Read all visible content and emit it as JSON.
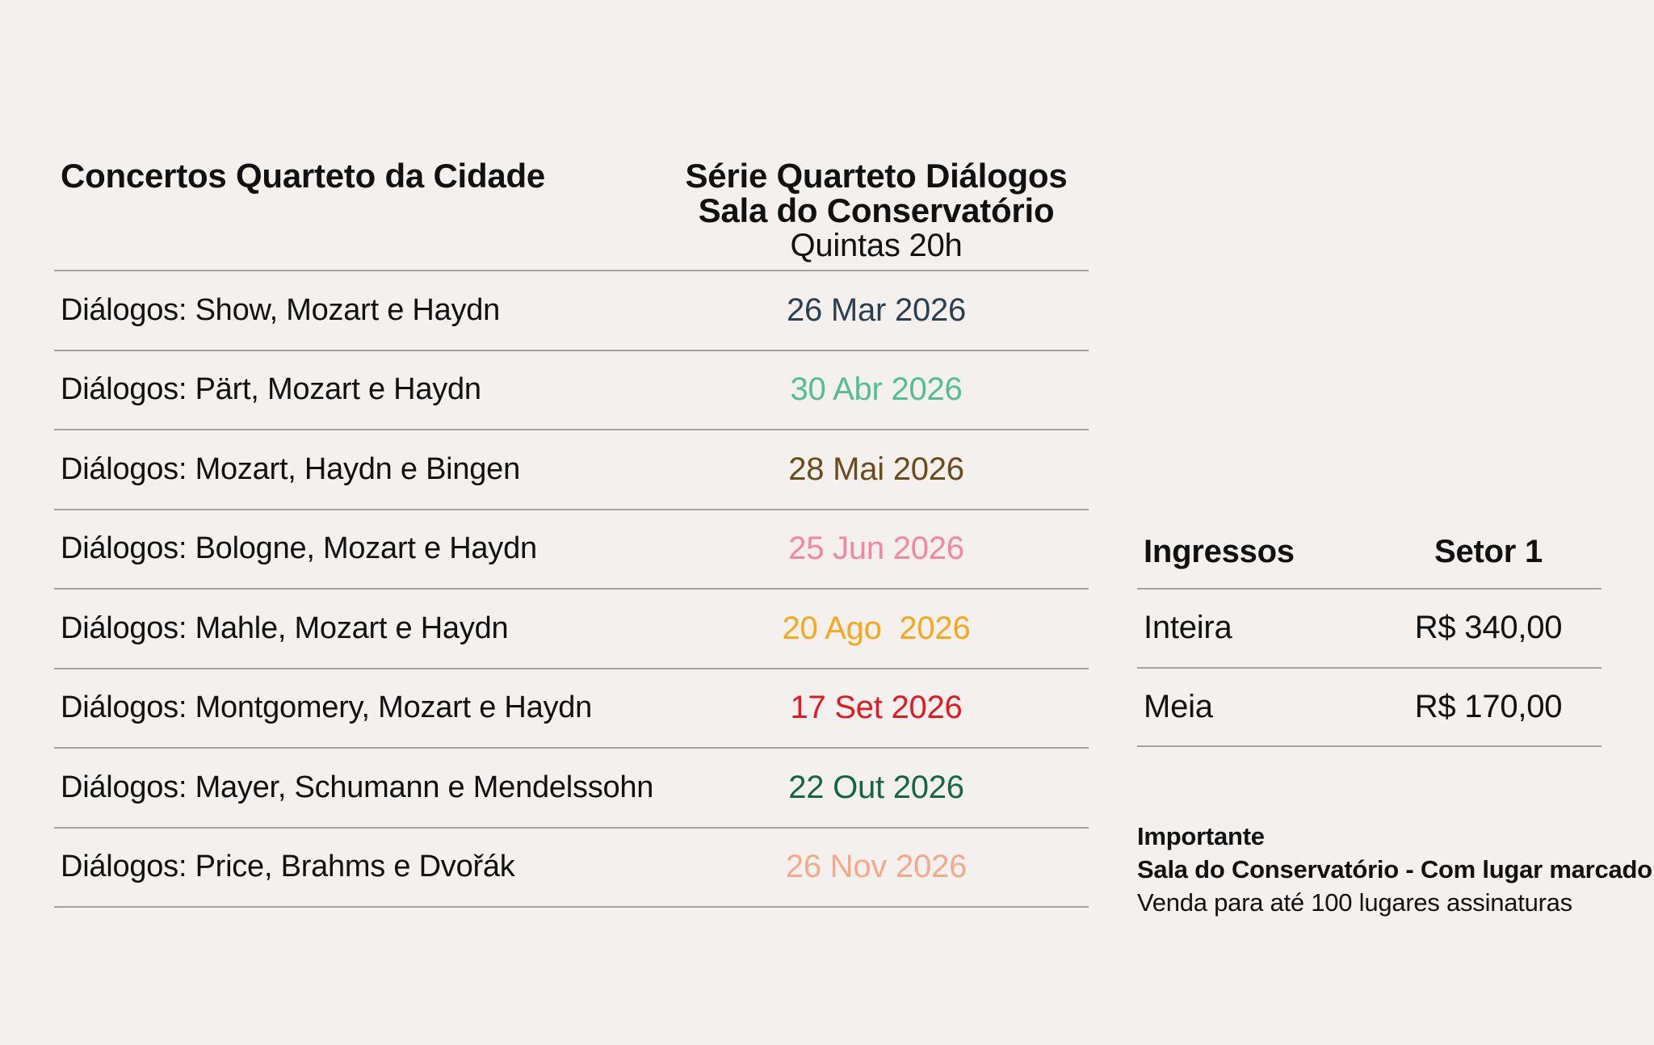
{
  "page": {
    "background": "#f4f0ee",
    "divider_color": "#a8a29e",
    "text_color": "#111111"
  },
  "schedule": {
    "title": "Concertos Quarteto da Cidade",
    "series_title": "Série Quarteto Diálogos",
    "venue": "Sala do Conservatório",
    "time": "Quintas 20h",
    "rows": [
      {
        "name": "Diálogos: Show, Mozart e Haydn",
        "date": "26 Mar 2026",
        "date_color": "#2b3f4f"
      },
      {
        "name": "Diálogos: Pärt, Mozart e Haydn",
        "date": "30 Abr 2026",
        "date_color": "#55bd95"
      },
      {
        "name": "Diálogos: Mozart, Haydn e Bingen",
        "date": "28 Mai 2026",
        "date_color": "#6b4a1b"
      },
      {
        "name": "Diálogos: Bologne, Mozart e Haydn",
        "date": "25 Jun 2026",
        "date_color": "#f5869d"
      },
      {
        "name": "Diálogos: Mahle, Mozart e Haydn",
        "date": "20 Ago  2026",
        "date_color": "#f8a61e"
      },
      {
        "name": "Diálogos: Montgomery, Mozart e Haydn",
        "date": "17 Set 2026",
        "date_color": "#e11a21"
      },
      {
        "name": "Diálogos: Mayer, Schumann e Mendelssohn",
        "date": "22 Out 2026",
        "date_color": "#15654a"
      },
      {
        "name": "Diálogos: Price, Brahms e Dvořák",
        "date": "26 Nov 2026",
        "date_color": "#f3aa8c"
      }
    ]
  },
  "tickets": {
    "title": "Ingressos",
    "sector": "Setor 1",
    "rows": [
      {
        "type": "Inteira",
        "price": "R$ 340,00"
      },
      {
        "type": "Meia",
        "price": "R$ 170,00"
      }
    ]
  },
  "notes": {
    "heading": "Importante",
    "line1": "Sala do Conservatório - Com lugar marcado",
    "line2": "Venda para até 100 lugares assinaturas"
  }
}
